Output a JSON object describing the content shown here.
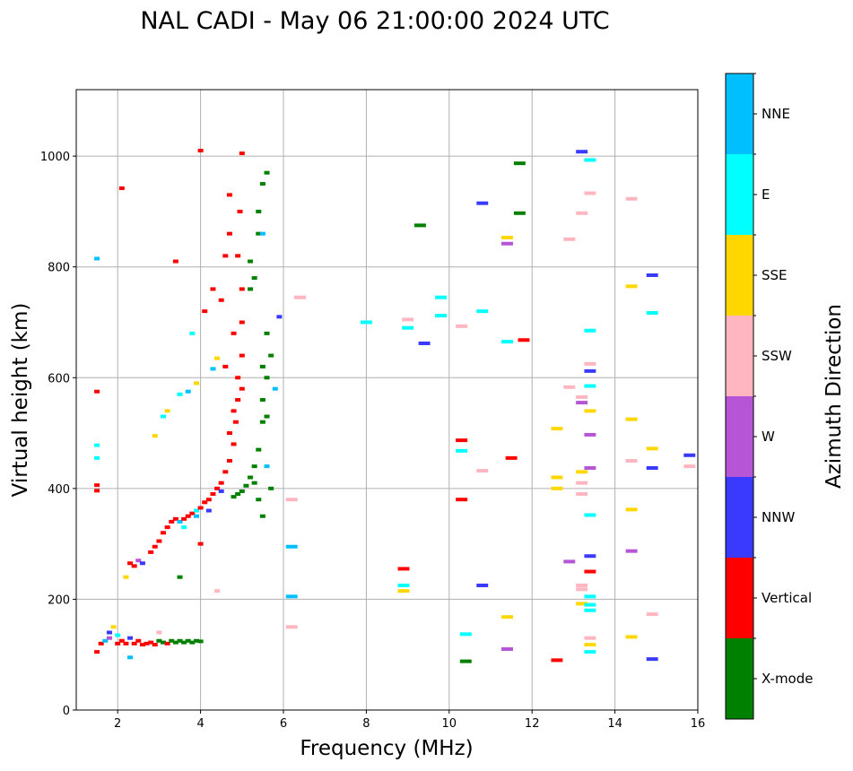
{
  "chart_data": {
    "type": "scatter",
    "title": "NAL CADI - May 06 21:00:00 2024 UTC",
    "xlabel": "Frequency (MHz)",
    "ylabel": "Virtual height (km)",
    "xlim": [
      1,
      16
    ],
    "ylim": [
      0,
      1120
    ],
    "xticks": [
      2,
      4,
      6,
      8,
      10,
      12,
      14,
      16
    ],
    "yticks": [
      0,
      200,
      400,
      600,
      800,
      1000
    ],
    "grid": true,
    "colorbar": {
      "label": "Azimuth Direction",
      "categories": [
        "X-mode",
        "Vertical",
        "NNW",
        "W",
        "SSW",
        "SSE",
        "E",
        "NNE"
      ],
      "colors": [
        "#008000",
        "#ff0000",
        "#3a3aff",
        "#b655d6",
        "#ffb6c1",
        "#ffd700",
        "#00ffff",
        "#00bfff"
      ]
    },
    "point_format": [
      "frequency_mhz",
      "virtual_height_km",
      "direction_index"
    ],
    "points": [
      [
        1.5,
        105,
        1
      ],
      [
        1.6,
        120,
        1
      ],
      [
        1.7,
        125,
        7
      ],
      [
        1.8,
        130,
        3
      ],
      [
        1.8,
        140,
        2
      ],
      [
        1.9,
        150,
        5
      ],
      [
        2.0,
        120,
        1
      ],
      [
        2.0,
        135,
        6
      ],
      [
        2.1,
        125,
        1
      ],
      [
        2.2,
        120,
        1
      ],
      [
        2.3,
        130,
        2
      ],
      [
        2.3,
        95,
        7
      ],
      [
        2.4,
        120,
        1
      ],
      [
        2.5,
        125,
        1
      ],
      [
        2.6,
        118,
        1
      ],
      [
        2.7,
        120,
        1
      ],
      [
        2.8,
        122,
        1
      ],
      [
        2.9,
        118,
        1
      ],
      [
        3.0,
        125,
        0
      ],
      [
        3.0,
        140,
        4
      ],
      [
        3.1,
        122,
        0
      ],
      [
        3.2,
        120,
        1
      ],
      [
        3.3,
        125,
        0
      ],
      [
        3.4,
        122,
        0
      ],
      [
        3.5,
        125,
        0
      ],
      [
        3.6,
        122,
        0
      ],
      [
        3.7,
        125,
        0
      ],
      [
        3.8,
        122,
        0
      ],
      [
        3.9,
        125,
        0
      ],
      [
        4.0,
        124,
        0
      ],
      [
        2.2,
        240,
        5
      ],
      [
        2.3,
        265,
        1
      ],
      [
        2.4,
        260,
        1
      ],
      [
        2.5,
        270,
        3
      ],
      [
        2.6,
        265,
        2
      ],
      [
        2.8,
        285,
        1
      ],
      [
        2.9,
        295,
        1
      ],
      [
        3.0,
        305,
        1
      ],
      [
        3.1,
        320,
        1
      ],
      [
        3.2,
        330,
        1
      ],
      [
        3.3,
        340,
        1
      ],
      [
        3.4,
        345,
        1
      ],
      [
        3.5,
        340,
        7
      ],
      [
        3.6,
        345,
        1
      ],
      [
        3.7,
        350,
        1
      ],
      [
        3.8,
        355,
        1
      ],
      [
        3.9,
        360,
        6
      ],
      [
        4.0,
        365,
        1
      ],
      [
        4.1,
        375,
        1
      ],
      [
        4.2,
        380,
        1
      ],
      [
        4.3,
        390,
        1
      ],
      [
        4.4,
        400,
        1
      ],
      [
        4.5,
        410,
        1
      ],
      [
        4.6,
        430,
        1
      ],
      [
        4.7,
        450,
        1
      ],
      [
        4.8,
        480,
        1
      ],
      [
        4.85,
        520,
        1
      ],
      [
        4.9,
        560,
        1
      ],
      [
        4.9,
        600,
        1
      ],
      [
        5.0,
        640,
        1
      ],
      [
        5.0,
        700,
        1
      ],
      [
        5.0,
        760,
        1
      ],
      [
        4.9,
        820,
        1
      ],
      [
        4.95,
        900,
        1
      ],
      [
        5.0,
        1005,
        1
      ],
      [
        4.0,
        1010,
        1
      ],
      [
        4.3,
        760,
        1
      ],
      [
        4.1,
        720,
        1
      ],
      [
        4.6,
        820,
        1
      ],
      [
        4.7,
        930,
        1
      ],
      [
        3.9,
        350,
        7
      ],
      [
        4.2,
        360,
        2
      ],
      [
        3.6,
        330,
        6
      ],
      [
        4.5,
        395,
        2
      ],
      [
        4.7,
        500,
        1
      ],
      [
        4.8,
        540,
        1
      ],
      [
        5.0,
        580,
        1
      ],
      [
        4.6,
        620,
        1
      ],
      [
        4.8,
        680,
        1
      ],
      [
        4.5,
        740,
        1
      ],
      [
        4.7,
        860,
        1
      ],
      [
        4.8,
        385,
        0
      ],
      [
        4.9,
        390,
        0
      ],
      [
        5.0,
        395,
        0
      ],
      [
        5.1,
        405,
        0
      ],
      [
        5.2,
        420,
        0
      ],
      [
        5.3,
        440,
        0
      ],
      [
        5.4,
        470,
        0
      ],
      [
        5.5,
        520,
        0
      ],
      [
        5.5,
        560,
        0
      ],
      [
        5.6,
        600,
        0
      ],
      [
        5.6,
        680,
        0
      ],
      [
        5.3,
        780,
        0
      ],
      [
        5.2,
        810,
        0
      ],
      [
        5.4,
        900,
        0
      ],
      [
        5.5,
        950,
        0
      ],
      [
        5.6,
        970,
        0
      ],
      [
        5.7,
        640,
        0
      ],
      [
        5.5,
        350,
        0
      ],
      [
        5.7,
        400,
        0
      ],
      [
        5.3,
        410,
        0
      ],
      [
        5.4,
        380,
        0
      ],
      [
        5.6,
        530,
        0
      ],
      [
        5.5,
        620,
        0
      ],
      [
        5.2,
        760,
        0
      ],
      [
        5.4,
        860,
        0
      ],
      [
        3.2,
        540,
        5
      ],
      [
        3.1,
        530,
        6
      ],
      [
        3.5,
        570,
        6
      ],
      [
        3.9,
        590,
        5
      ],
      [
        3.8,
        680,
        6
      ],
      [
        4.4,
        635,
        5
      ],
      [
        4.3,
        616,
        7
      ],
      [
        3.7,
        575,
        7
      ],
      [
        3.4,
        810,
        1
      ],
      [
        5.5,
        860,
        7
      ],
      [
        5.8,
        580,
        7
      ],
      [
        5.6,
        440,
        7
      ],
      [
        3.5,
        240,
        0
      ],
      [
        4.0,
        300,
        1
      ],
      [
        2.9,
        495,
        5
      ],
      [
        4.4,
        215,
        4
      ],
      [
        6.2,
        295,
        7
      ],
      [
        6.2,
        205,
        7
      ],
      [
        6.2,
        150,
        4
      ],
      [
        6.2,
        380,
        4
      ],
      [
        6.4,
        745,
        4
      ],
      [
        5.9,
        710,
        2
      ],
      [
        8.0,
        700,
        6
      ],
      [
        8.9,
        255,
        1
      ],
      [
        8.9,
        225,
        6
      ],
      [
        8.9,
        215,
        5
      ],
      [
        9.0,
        690,
        6
      ],
      [
        9.0,
        705,
        4
      ],
      [
        9.3,
        875,
        0
      ],
      [
        9.4,
        662,
        2
      ],
      [
        9.8,
        745,
        6
      ],
      [
        9.8,
        712,
        6
      ],
      [
        10.3,
        693,
        4
      ],
      [
        10.3,
        487,
        1
      ],
      [
        10.3,
        468,
        6
      ],
      [
        10.3,
        380,
        1
      ],
      [
        10.4,
        137,
        6
      ],
      [
        10.4,
        88,
        0
      ],
      [
        10.8,
        915,
        2
      ],
      [
        10.8,
        720,
        6
      ],
      [
        10.8,
        432,
        4
      ],
      [
        10.8,
        225,
        2
      ],
      [
        11.4,
        853,
        5
      ],
      [
        11.4,
        842,
        3
      ],
      [
        11.4,
        665,
        6
      ],
      [
        11.4,
        168,
        5
      ],
      [
        11.4,
        110,
        3
      ],
      [
        11.5,
        455,
        1
      ],
      [
        11.7,
        987,
        0
      ],
      [
        11.7,
        897,
        0
      ],
      [
        11.8,
        668,
        1
      ],
      [
        12.6,
        508,
        5
      ],
      [
        12.6,
        420,
        5
      ],
      [
        12.6,
        400,
        5
      ],
      [
        12.6,
        90,
        1
      ],
      [
        12.9,
        850,
        4
      ],
      [
        12.9,
        583,
        4
      ],
      [
        12.9,
        268,
        3
      ],
      [
        13.2,
        1008,
        2
      ],
      [
        13.2,
        897,
        4
      ],
      [
        13.2,
        565,
        4
      ],
      [
        13.2,
        555,
        3
      ],
      [
        13.2,
        430,
        5
      ],
      [
        13.2,
        410,
        4
      ],
      [
        13.2,
        390,
        4
      ],
      [
        13.2,
        225,
        4
      ],
      [
        13.2,
        218,
        4
      ],
      [
        13.2,
        192,
        5
      ],
      [
        13.4,
        993,
        6
      ],
      [
        13.4,
        933,
        4
      ],
      [
        13.4,
        685,
        6
      ],
      [
        13.4,
        625,
        4
      ],
      [
        13.4,
        612,
        2
      ],
      [
        13.4,
        585,
        6
      ],
      [
        13.4,
        540,
        5
      ],
      [
        13.4,
        497,
        3
      ],
      [
        13.4,
        437,
        3
      ],
      [
        13.4,
        352,
        6
      ],
      [
        13.4,
        278,
        2
      ],
      [
        13.4,
        250,
        1
      ],
      [
        13.4,
        205,
        6
      ],
      [
        13.4,
        190,
        6
      ],
      [
        13.4,
        180,
        6
      ],
      [
        13.4,
        130,
        4
      ],
      [
        13.4,
        118,
        5
      ],
      [
        13.4,
        105,
        6
      ],
      [
        14.4,
        923,
        4
      ],
      [
        14.4,
        765,
        5
      ],
      [
        14.4,
        525,
        5
      ],
      [
        14.4,
        450,
        4
      ],
      [
        14.4,
        362,
        5
      ],
      [
        14.4,
        287,
        3
      ],
      [
        14.4,
        132,
        5
      ],
      [
        14.9,
        785,
        2
      ],
      [
        14.9,
        717,
        6
      ],
      [
        14.9,
        472,
        5
      ],
      [
        14.9,
        437,
        2
      ],
      [
        14.9,
        173,
        4
      ],
      [
        14.9,
        92,
        2
      ],
      [
        15.8,
        460,
        2
      ],
      [
        15.8,
        440,
        4
      ],
      [
        1.5,
        815,
        7
      ],
      [
        1.5,
        575,
        1
      ],
      [
        1.5,
        478,
        6
      ],
      [
        1.5,
        455,
        6
      ],
      [
        1.5,
        406,
        1
      ],
      [
        1.5,
        396,
        1
      ],
      [
        2.1,
        942,
        1
      ]
    ]
  }
}
